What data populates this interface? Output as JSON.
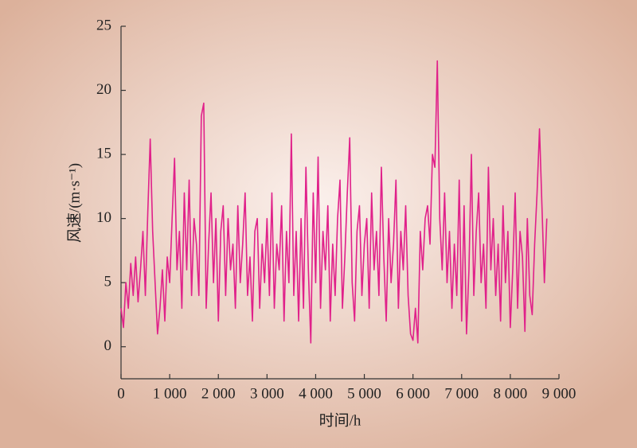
{
  "chart_data": {
    "type": "line",
    "xlabel": "时间/h",
    "ylabel": "风速/(m·s⁻¹)",
    "x": [
      0,
      50,
      100,
      150,
      200,
      250,
      300,
      350,
      400,
      450,
      500,
      550,
      600,
      650,
      700,
      750,
      800,
      850,
      900,
      950,
      1000,
      1050,
      1100,
      1150,
      1200,
      1250,
      1300,
      1350,
      1400,
      1450,
      1500,
      1550,
      1600,
      1650,
      1700,
      1750,
      1800,
      1850,
      1900,
      1950,
      2000,
      2050,
      2100,
      2150,
      2200,
      2250,
      2300,
      2350,
      2400,
      2450,
      2500,
      2550,
      2600,
      2650,
      2700,
      2750,
      2800,
      2850,
      2900,
      2950,
      3000,
      3050,
      3100,
      3150,
      3200,
      3250,
      3300,
      3350,
      3400,
      3450,
      3500,
      3550,
      3600,
      3650,
      3700,
      3750,
      3800,
      3850,
      3900,
      3950,
      4000,
      4050,
      4100,
      4150,
      4200,
      4250,
      4300,
      4350,
      4400,
      4450,
      4500,
      4550,
      4600,
      4650,
      4700,
      4750,
      4800,
      4850,
      4900,
      4950,
      5000,
      5050,
      5100,
      5150,
      5200,
      5250,
      5300,
      5350,
      5400,
      5450,
      5500,
      5550,
      5600,
      5650,
      5700,
      5750,
      5800,
      5850,
      5900,
      5950,
      6000,
      6050,
      6100,
      6150,
      6200,
      6250,
      6300,
      6350,
      6400,
      6450,
      6500,
      6550,
      6600,
      6650,
      6700,
      6750,
      6800,
      6850,
      6900,
      6950,
      7000,
      7050,
      7100,
      7150,
      7200,
      7250,
      7300,
      7350,
      7400,
      7450,
      7500,
      7550,
      7600,
      7650,
      7700,
      7750,
      7800,
      7850,
      7900,
      7950,
      8000,
      8050,
      8100,
      8150,
      8200,
      8250,
      8300,
      8350,
      8400,
      8450,
      8500,
      8550,
      8600,
      8650,
      8700,
      8750
    ],
    "series": [
      {
        "name": "风速",
        "color": "#e0218a",
        "values": [
          3,
          1.5,
          5,
          3,
          6.5,
          4,
          7,
          3.5,
          6,
          9,
          4,
          10.5,
          16.2,
          9,
          5,
          1,
          3,
          6,
          2,
          7,
          5,
          10,
          14.7,
          6,
          9,
          3,
          12,
          6,
          13,
          4,
          10,
          8,
          4,
          18,
          19,
          3,
          8,
          12,
          5,
          10,
          2,
          9,
          11,
          4,
          10,
          6,
          8,
          3,
          11,
          5,
          8,
          12,
          4,
          7,
          2,
          9,
          10,
          3,
          8,
          5,
          10,
          4,
          12,
          3,
          8,
          6,
          11,
          2,
          9,
          5,
          16.6,
          4,
          9,
          2,
          10,
          3,
          14,
          6,
          0.3,
          12,
          5,
          14.8,
          3,
          9,
          6,
          11,
          2,
          8,
          4,
          10,
          13,
          3,
          7,
          12,
          16.3,
          5,
          2,
          9,
          11,
          4,
          8,
          10,
          3,
          12,
          6,
          9,
          4,
          14,
          7,
          2,
          10,
          5,
          8,
          13,
          3,
          9,
          6,
          11,
          4,
          1,
          0.5,
          3,
          0.3,
          9,
          6,
          10,
          11,
          8,
          15,
          14,
          22.3,
          10,
          6,
          12,
          5,
          9,
          3,
          8,
          4,
          13,
          2,
          11,
          1,
          6,
          15,
          4,
          9,
          12,
          5,
          8,
          3,
          14,
          6,
          10,
          4,
          8,
          2,
          11,
          5,
          9,
          1.5,
          6,
          12,
          3,
          9,
          7,
          1.2,
          10,
          4,
          2.5,
          8,
          12,
          17,
          11,
          5,
          10
        ]
      }
    ],
    "xlim": [
      0,
      9000
    ],
    "xticks": [
      0,
      {
        "value": 1000,
        "label": "1 000"
      },
      {
        "value": 2000,
        "label": "2 000"
      },
      {
        "value": 3000,
        "label": "3 000"
      },
      {
        "value": 4000,
        "label": "4 000"
      },
      {
        "value": 5000,
        "label": "5 000"
      },
      {
        "value": 6000,
        "label": "6 000"
      },
      {
        "value": 7000,
        "label": "7 000"
      },
      {
        "value": 8000,
        "label": "8 000"
      },
      {
        "value": 9000,
        "label": "9 000"
      }
    ],
    "ylim": [
      -2.5,
      25
    ],
    "yticks": [
      0,
      5,
      10,
      15,
      20,
      25
    ]
  }
}
